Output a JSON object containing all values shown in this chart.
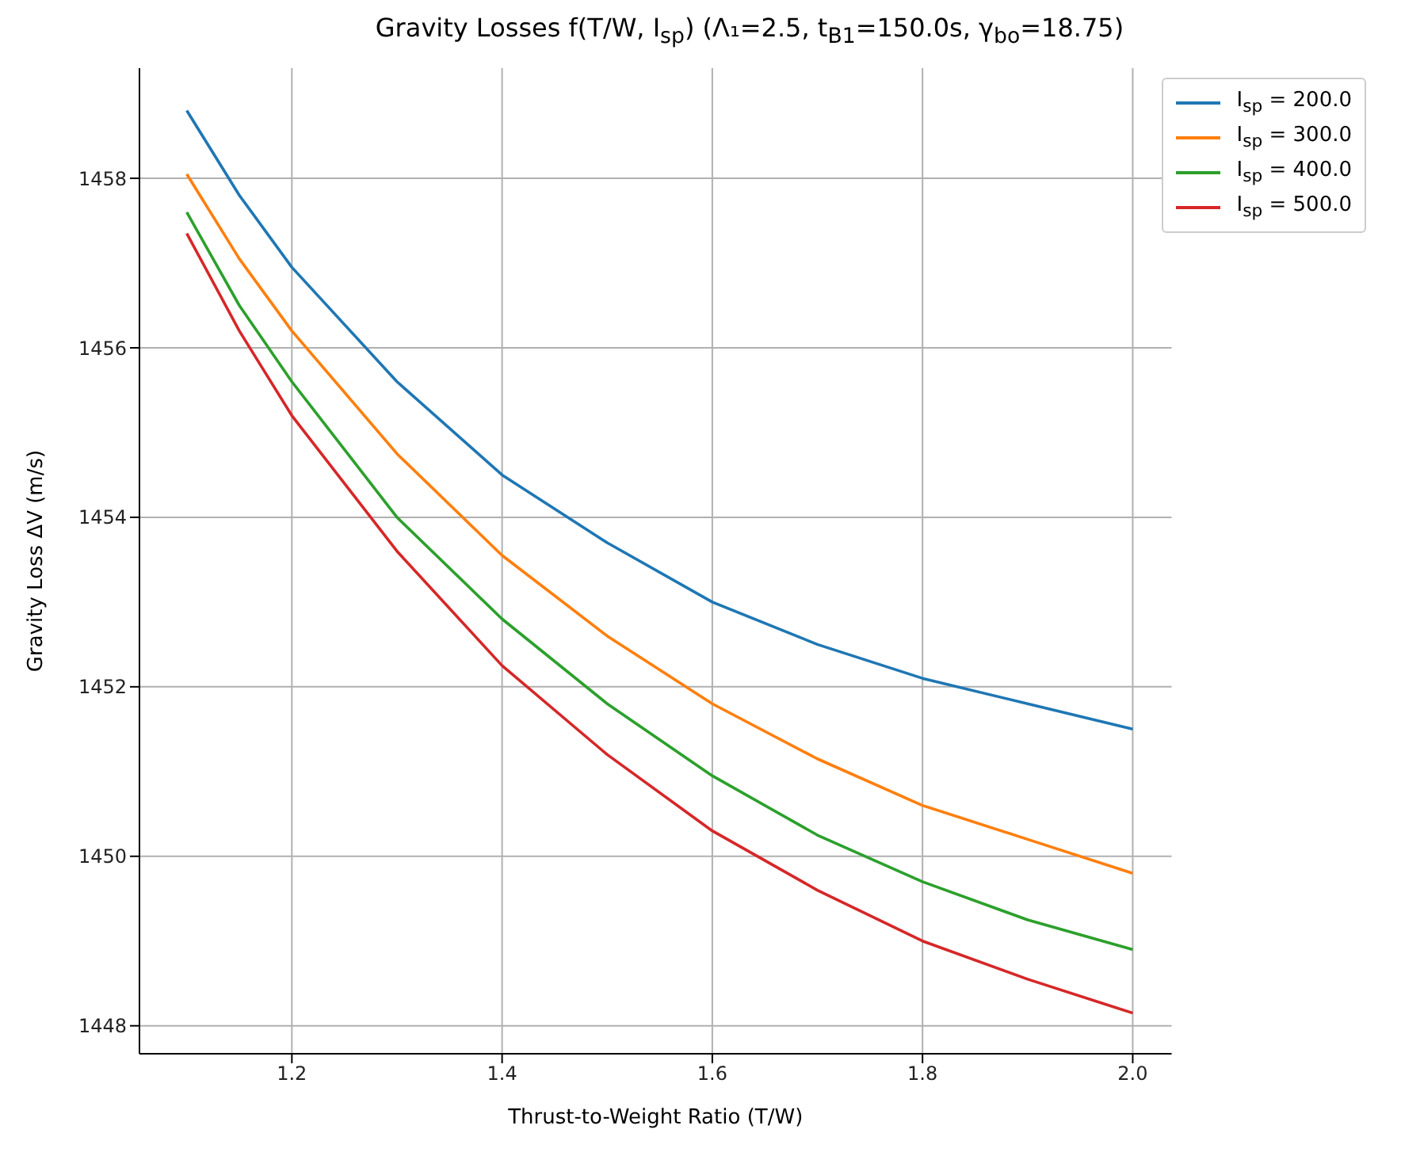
{
  "chart_data": {
    "type": "line",
    "title": "Gravity Losses f(T/W, I$_{sp}$) (Λ₁=2.5, t$_{B1}$=150.0s, γ$_{bo}$=18.75)",
    "xlabel": "Thrust-to-Weight Ratio (T/W)",
    "ylabel": "Gravity Loss ΔV (m/s)",
    "x": [
      1.1,
      1.15,
      1.2,
      1.3,
      1.4,
      1.5,
      1.6,
      1.7,
      1.8,
      1.9,
      2.0
    ],
    "series": [
      {
        "name": "I$_{sp}$ = 200.0",
        "color": "#1f77b4",
        "values": [
          1458.8,
          1457.8,
          1456.95,
          1455.6,
          1454.5,
          1453.7,
          1453.0,
          1452.5,
          1452.1,
          1451.8,
          1451.5
        ]
      },
      {
        "name": "I$_{sp}$ = 300.0",
        "color": "#ff7f0e",
        "values": [
          1458.05,
          1457.05,
          1456.2,
          1454.75,
          1453.55,
          1452.6,
          1451.8,
          1451.15,
          1450.6,
          1450.2,
          1449.8
        ]
      },
      {
        "name": "I$_{sp}$ = 400.0",
        "color": "#2ca02c",
        "values": [
          1457.6,
          1456.5,
          1455.6,
          1454.0,
          1452.8,
          1451.8,
          1450.95,
          1450.25,
          1449.7,
          1449.25,
          1448.9
        ]
      },
      {
        "name": "I$_{sp}$ = 500.0",
        "color": "#d62728",
        "values": [
          1457.35,
          1456.2,
          1455.2,
          1453.6,
          1452.25,
          1451.2,
          1450.3,
          1449.6,
          1449.0,
          1448.55,
          1448.15
        ]
      }
    ],
    "xlim": [
      1.055,
      2.037
    ],
    "xticks": [
      {
        "value": 1.2,
        "label": "1.2"
      },
      {
        "value": 1.4,
        "label": "1.4"
      },
      {
        "value": 1.6,
        "label": "1.6"
      },
      {
        "value": 1.8,
        "label": "1.8"
      },
      {
        "value": 2.0,
        "label": "2.0"
      }
    ],
    "ylim": [
      1447.67,
      1459.3
    ],
    "yticks": [
      1448,
      1450,
      1452,
      1454,
      1456,
      1458
    ],
    "grid": true,
    "legend": "top right",
    "marker": "none",
    "line_style": "solid"
  }
}
